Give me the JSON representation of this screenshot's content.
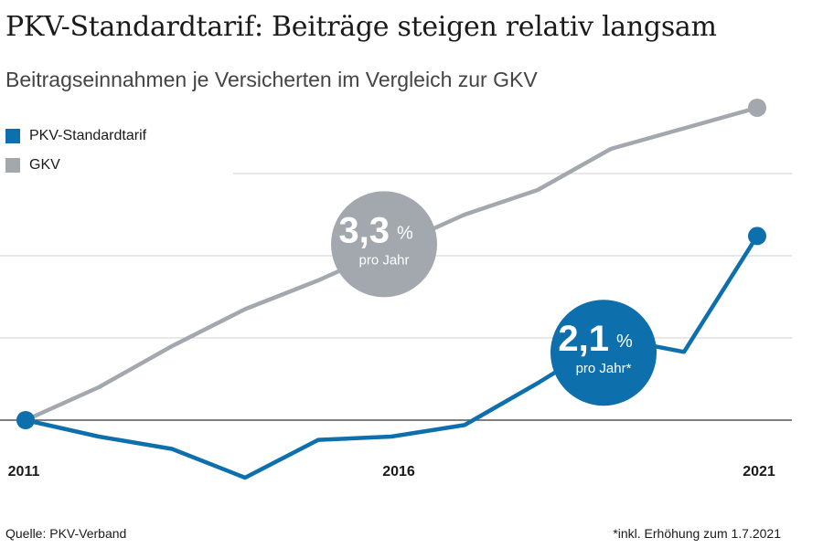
{
  "title": "PKV-Standardtarif: Beiträge steigen relativ langsam",
  "subtitle": "Beitragseinnahmen je Versicherten im Vergleich zur GKV",
  "legend": [
    {
      "label": "PKV-Standardtarif",
      "color": "#0e6fad"
    },
    {
      "label": "GKV",
      "color": "#a2a8ae"
    }
  ],
  "chart_data": {
    "type": "line",
    "x": [
      2011,
      2012,
      2013,
      2014,
      2015,
      2016,
      2017,
      2018,
      2019,
      2020,
      2021
    ],
    "xlim": [
      2011,
      2021
    ],
    "ylim": [
      -8,
      42
    ],
    "tick_labels": [
      "2011",
      "2016",
      "2021"
    ],
    "tick_values": [
      2011,
      2016,
      2021
    ],
    "gridlines": [
      0,
      10,
      20,
      30
    ],
    "series": [
      {
        "name": "GKV",
        "color": "#a2a8ae",
        "values": [
          0,
          4,
          9,
          13.5,
          17,
          21,
          25,
          28,
          33,
          35.5,
          38
        ]
      },
      {
        "name": "PKV-Standardtarif",
        "color": "#0e6fad",
        "values": [
          0,
          -2,
          -3.5,
          -7,
          -2.4,
          -2,
          -0.6,
          4.5,
          10,
          8.3,
          22.4
        ]
      }
    ],
    "annotations": [
      {
        "series": "GKV",
        "value": "3,3",
        "unit": "%",
        "label": "pro Jahr",
        "color": "#a2a8ae",
        "at_x": 2015.9,
        "at_y": 21.4
      },
      {
        "series": "PKV-Standardtarif",
        "value": "2,1",
        "unit": "%",
        "label": "pro Jahr*",
        "color": "#0e6fad",
        "at_x": 2018.9,
        "at_y": 8.2
      }
    ]
  },
  "footer": {
    "source": "Quelle: PKV-Verband",
    "note": "*inkl. Erhöhung zum 1.7.2021"
  }
}
